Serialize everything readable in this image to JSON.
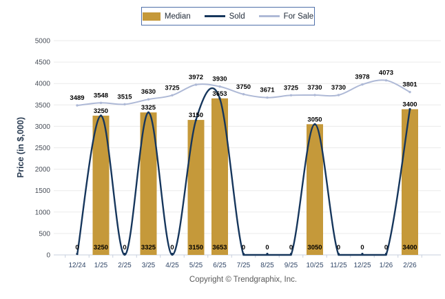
{
  "legend": {
    "items": [
      {
        "label": "Median",
        "type": "bar",
        "color": "#C5993A"
      },
      {
        "label": "Sold",
        "type": "line",
        "color": "#16365C"
      },
      {
        "label": "For Sale",
        "type": "line",
        "color": "#AEB9D6"
      }
    ]
  },
  "chart_data": {
    "type": "bar+line combo",
    "categories": [
      "12/24",
      "1/25",
      "2/25",
      "3/25",
      "4/25",
      "5/25",
      "6/25",
      "7/25",
      "8/25",
      "9/25",
      "10/25",
      "11/25",
      "12/25",
      "1/26",
      "2/26"
    ],
    "series": [
      {
        "name": "Median",
        "type": "bar",
        "color": "#C5993A",
        "values": [
          0,
          3250,
          0,
          3325,
          0,
          3150,
          3653,
          0,
          0,
          0,
          3050,
          0,
          0,
          0,
          3400
        ]
      },
      {
        "name": "Sold",
        "type": "line",
        "color": "#16365C",
        "values": [
          0,
          3250,
          0,
          3325,
          0,
          3150,
          3653,
          0,
          0,
          0,
          3050,
          0,
          0,
          0,
          3400
        ]
      },
      {
        "name": "For Sale",
        "type": "line",
        "color": "#AEB9D6",
        "values": [
          3489,
          3548,
          3515,
          3630,
          3725,
          3972,
          3930,
          3750,
          3671,
          3725,
          3730,
          3730,
          3978,
          4073,
          3801
        ]
      }
    ],
    "title": "",
    "xlabel": "",
    "ylabel": "Price (in $,000)",
    "ylim": [
      0,
      5000
    ],
    "ytick_step": 500,
    "grid": "horizontal",
    "legend_position": "top-center"
  },
  "footer": {
    "copyright": "Copyright © Trendgraphix, Inc."
  }
}
